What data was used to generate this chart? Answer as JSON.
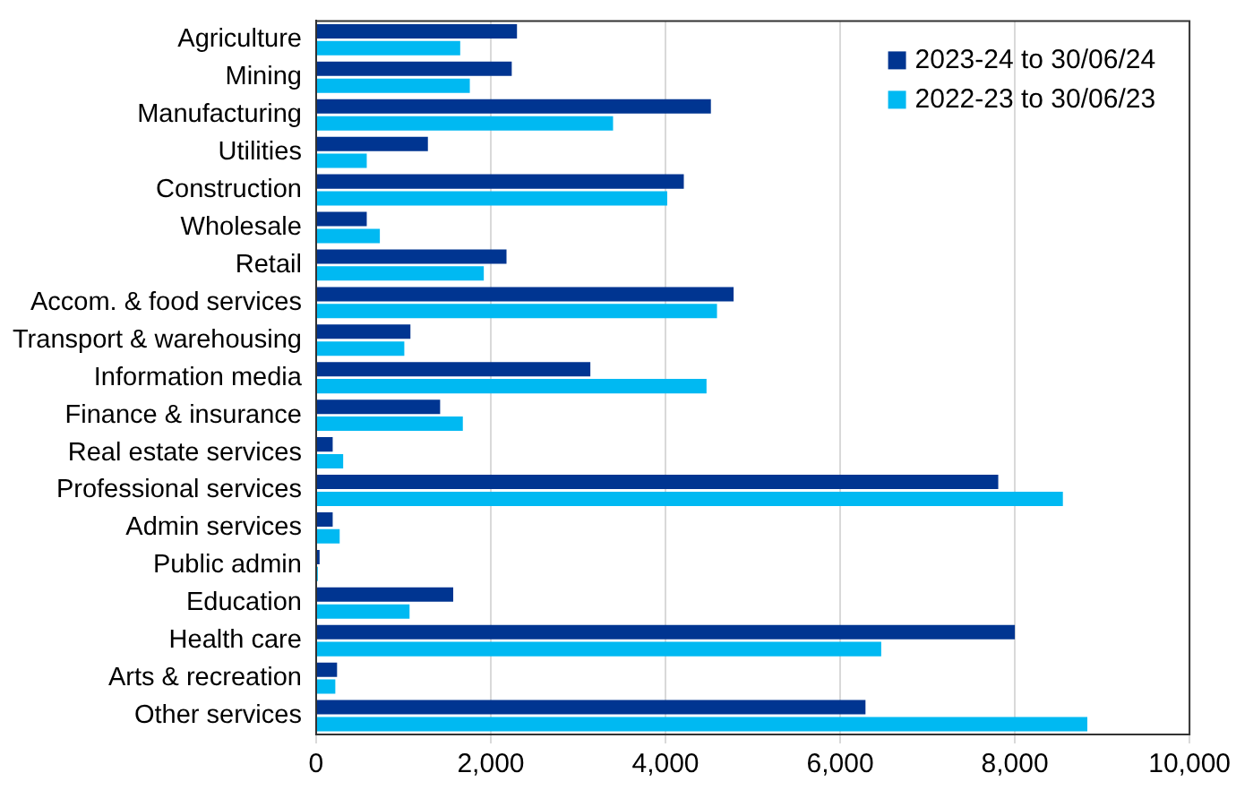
{
  "chart_data": {
    "type": "bar",
    "orientation": "horizontal",
    "categories": [
      "Agriculture",
      "Mining",
      "Manufacturing",
      "Utilities",
      "Construction",
      "Wholesale",
      "Retail",
      "Accom. & food services",
      "Transport & warehousing",
      "Information media",
      "Finance & insurance",
      "Real estate services",
      "Professional services",
      "Admin services",
      "Public admin",
      "Education",
      "Health care",
      "Arts & recreation",
      "Other services"
    ],
    "series": [
      {
        "name": "2023-24 to 30/06/24",
        "color": "#003591",
        "values": [
          2300,
          2240,
          4520,
          1280,
          4210,
          580,
          2180,
          4780,
          1080,
          3140,
          1420,
          190,
          7810,
          190,
          40,
          1570,
          8000,
          240,
          6290
        ]
      },
      {
        "name": "2022-23 to 30/06/23",
        "color": "#00b9f2",
        "values": [
          1650,
          1760,
          3400,
          580,
          4020,
          730,
          1920,
          4590,
          1010,
          4470,
          1680,
          310,
          8550,
          270,
          20,
          1070,
          6470,
          220,
          8830
        ]
      }
    ],
    "xlim": [
      0,
      10000
    ],
    "xticks": [
      0,
      {
        "value": 2000,
        "label": "2,000"
      },
      {
        "value": 4000,
        "label": "4,000"
      },
      {
        "value": 6000,
        "label": "6,000"
      },
      {
        "value": 8000,
        "label": "8,000"
      },
      {
        "value": 10000,
        "label": "10,000"
      }
    ],
    "grid": "x",
    "legend": "top right"
  }
}
